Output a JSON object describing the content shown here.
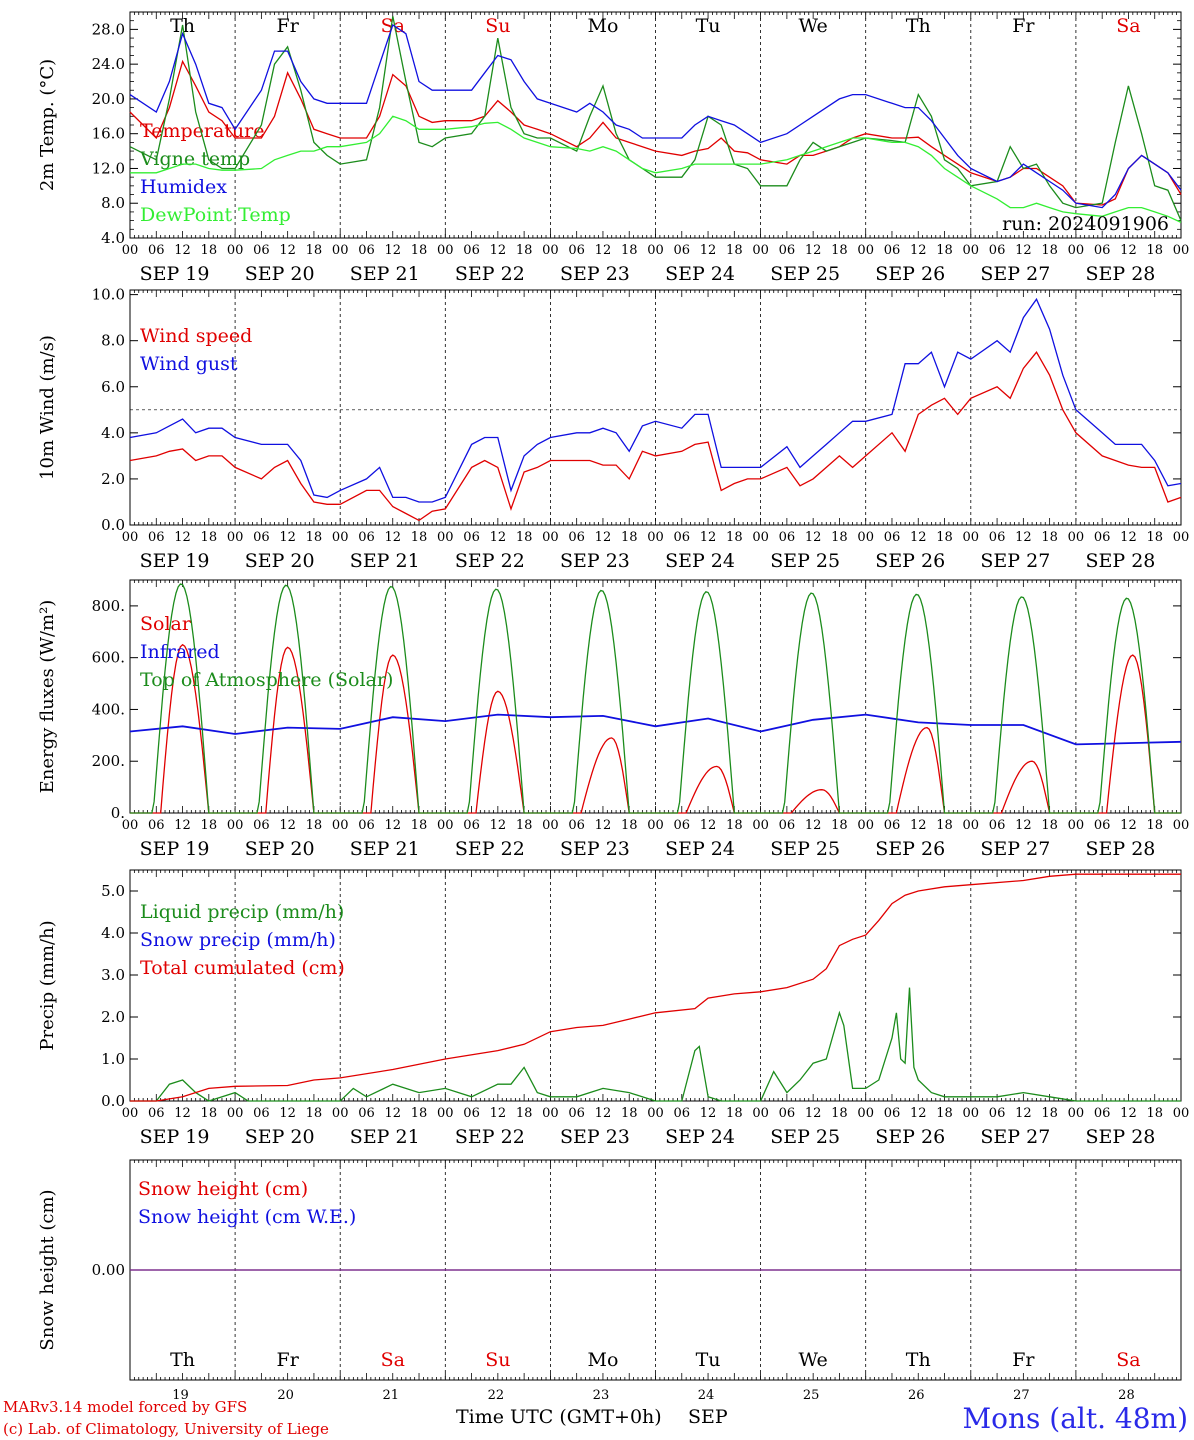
{
  "station": {
    "location": "Mons (alt. 48m)",
    "credit_line1": "MARv3.14 model forced by GFS",
    "credit_line2": "(c) Lab. of Climatology, University of Liege",
    "xlabel": "Time UTC (GMT+0h)",
    "month": "SEP",
    "run": "run: 2024091906"
  },
  "days": {
    "abbr": [
      "Th",
      "Fr",
      "Sa",
      "Su",
      "Mo",
      "Tu",
      "We",
      "Th",
      "Fr",
      "Sa"
    ],
    "dates": [
      "SEP 19",
      "SEP 20",
      "SEP 21",
      "SEP 22",
      "SEP 23",
      "SEP 24",
      "SEP 25",
      "SEP 26",
      "SEP 27",
      "SEP 28"
    ],
    "numbers": [
      "19",
      "20",
      "21",
      "22",
      "23",
      "24",
      "25",
      "26",
      "27",
      "28"
    ],
    "weekend_color": "#e00000",
    "hour_ticks": [
      "00",
      "06",
      "12",
      "18"
    ],
    "final_hour": "00"
  },
  "colors": {
    "red": "#e00000",
    "green": "#1c8c1c",
    "blue": "#1010e0",
    "light_green": "#33ee33",
    "purple": "#7a2a8a"
  },
  "chart_data": [
    {
      "type": "line",
      "id": "temperature",
      "ylabel": "2m Temp. (°C)",
      "ylim": [
        4,
        30
      ],
      "yticks": [
        4,
        8,
        12,
        16,
        20,
        24,
        28
      ],
      "yticklabels": [
        "4.0",
        "8.0",
        "12.0",
        "16.0",
        "20.0",
        "24.0",
        "28.0"
      ],
      "x_hours": [
        0,
        6,
        9,
        12,
        15,
        18,
        21,
        24,
        30,
        33,
        36,
        39,
        42,
        45,
        48,
        54,
        57,
        60,
        63,
        66,
        69,
        72,
        78,
        81,
        84,
        87,
        90,
        93,
        96,
        102,
        105,
        108,
        111,
        114,
        117,
        120,
        126,
        129,
        132,
        135,
        138,
        141,
        144,
        150,
        153,
        156,
        159,
        162,
        165,
        168,
        174,
        177,
        180,
        183,
        186,
        189,
        192,
        198,
        201,
        204,
        207,
        210,
        213,
        216,
        222,
        225,
        228,
        231,
        234,
        237,
        240
      ],
      "series": [
        {
          "name": "Temperature",
          "color": "#e00000",
          "values": [
            18.5,
            15.5,
            19,
            24.3,
            21.5,
            18.5,
            17.5,
            15.5,
            15.5,
            18,
            23,
            20,
            16.5,
            16,
            15.5,
            15.5,
            18,
            22.8,
            21.5,
            18,
            17.3,
            17.5,
            17.5,
            18,
            19.8,
            18.5,
            17,
            16.5,
            16,
            14.5,
            15.5,
            17.3,
            15.5,
            15,
            14.5,
            14,
            13.5,
            14,
            14.3,
            15.5,
            14,
            13.8,
            13,
            12.5,
            13.5,
            13.5,
            14,
            14.5,
            15.5,
            16,
            15.5,
            15.5,
            15.6,
            14.5,
            13.5,
            12.5,
            11.5,
            10.5,
            11,
            12,
            12,
            11,
            10,
            8,
            7.8,
            8.5,
            12,
            13.5,
            12.5,
            11.5,
            9
          ]
        },
        {
          "name": "Vigne temp",
          "color": "#1c8c1c",
          "values": [
            14.5,
            13,
            20,
            28.5,
            18.5,
            13,
            12,
            12,
            17,
            24,
            26,
            21,
            15,
            13.5,
            12.5,
            13,
            19,
            29.5,
            22,
            15,
            14.5,
            15.5,
            16,
            18,
            27,
            19,
            16,
            15.5,
            15.5,
            14,
            18,
            21.5,
            16,
            13,
            12,
            11,
            11,
            13,
            18,
            17,
            12.5,
            12,
            10,
            10,
            13,
            15,
            14,
            14.5,
            15,
            15.5,
            15.2,
            15,
            20.5,
            18,
            13,
            12,
            10,
            10.5,
            14.5,
            12,
            12.5,
            10,
            8,
            7.5,
            8,
            15,
            21.5,
            16,
            10,
            9.5,
            6
          ]
        },
        {
          "name": "Humidex",
          "color": "#1010e0",
          "values": [
            20.5,
            18.5,
            22,
            27.5,
            24,
            19.5,
            19,
            16.5,
            21,
            25.5,
            25.5,
            22,
            20,
            19.5,
            19.5,
            19.5,
            24,
            28.5,
            27.5,
            22,
            21,
            21,
            21,
            23,
            25,
            24.5,
            22,
            20,
            19.5,
            18.5,
            19.5,
            18.5,
            17,
            16.5,
            15.5,
            15.5,
            15.5,
            17,
            18,
            17.5,
            17,
            16,
            15,
            16,
            17,
            18,
            19,
            20,
            20.5,
            20.5,
            19.5,
            19,
            19,
            17.5,
            15.5,
            13.5,
            12,
            10.5,
            11,
            12.5,
            11.5,
            10.5,
            9.5,
            8,
            7.5,
            9,
            12,
            13.5,
            12.5,
            11.5,
            9.5
          ]
        },
        {
          "name": "DewPoint Temp",
          "color": "#33ee33",
          "values": [
            11.5,
            11.5,
            12,
            12.5,
            12.5,
            12,
            11.8,
            11.8,
            12,
            13,
            13.5,
            14,
            14,
            14.5,
            14.5,
            15,
            16,
            18,
            17.5,
            16.5,
            16.5,
            16.5,
            16.8,
            17.2,
            17.3,
            16.5,
            15.5,
            15,
            14.5,
            14.3,
            14,
            14.5,
            14,
            13,
            12,
            11.5,
            12,
            12.5,
            12.5,
            12.5,
            12.5,
            12.5,
            12.5,
            13,
            13.5,
            14,
            14.5,
            15,
            15.5,
            15.5,
            15,
            15,
            14.5,
            13.5,
            12,
            11,
            10,
            8.5,
            7.5,
            7.5,
            8,
            7.5,
            7,
            6.8,
            6.5,
            7,
            7.5,
            7.5,
            7,
            6.5,
            5.8
          ]
        }
      ]
    },
    {
      "type": "line",
      "id": "wind",
      "ylabel": "10m Wind (m/s)",
      "ylim": [
        0,
        10.2
      ],
      "yticks": [
        0,
        2,
        4,
        6,
        8,
        10
      ],
      "yticklabels": [
        "0.0",
        "2.0",
        "4.0",
        "6.0",
        "8.0",
        "10.0"
      ],
      "reference_line": 5,
      "x_hours": [
        0,
        6,
        9,
        12,
        15,
        18,
        21,
        24,
        30,
        33,
        36,
        39,
        42,
        45,
        48,
        54,
        57,
        60,
        63,
        66,
        69,
        72,
        78,
        81,
        84,
        87,
        90,
        93,
        96,
        102,
        105,
        108,
        111,
        114,
        117,
        120,
        126,
        129,
        132,
        135,
        138,
        141,
        144,
        150,
        153,
        156,
        159,
        162,
        165,
        168,
        174,
        177,
        180,
        183,
        186,
        189,
        192,
        198,
        201,
        204,
        207,
        210,
        213,
        216,
        222,
        225,
        228,
        231,
        234,
        237,
        240
      ],
      "series": [
        {
          "name": "Wind speed",
          "color": "#e00000",
          "values": [
            2.8,
            3,
            3.2,
            3.3,
            2.8,
            3,
            3,
            2.5,
            2,
            2.5,
            2.8,
            1.8,
            1,
            0.9,
            0.9,
            1.5,
            1.5,
            0.8,
            0.5,
            0.2,
            0.6,
            0.7,
            2.5,
            2.8,
            2.5,
            0.7,
            2.3,
            2.5,
            2.8,
            2.8,
            2.8,
            2.6,
            2.6,
            2,
            3.2,
            3,
            3.2,
            3.5,
            3.6,
            1.5,
            1.8,
            2,
            2,
            2.5,
            1.7,
            2,
            2.5,
            3,
            2.5,
            3,
            4,
            3.2,
            4.8,
            5.2,
            5.5,
            4.8,
            5.5,
            6,
            5.5,
            6.8,
            7.5,
            6.5,
            5,
            4,
            3,
            2.8,
            2.6,
            2.5,
            2.5,
            1,
            1.2
          ]
        },
        {
          "name": "Wind gust",
          "color": "#1010e0",
          "values": [
            3.8,
            4,
            4.3,
            4.6,
            4,
            4.2,
            4.2,
            3.8,
            3.5,
            3.5,
            3.5,
            2.8,
            1.3,
            1.2,
            1.5,
            2,
            2.5,
            1.2,
            1.2,
            1,
            1,
            1.2,
            3.5,
            3.8,
            3.8,
            1.5,
            3,
            3.5,
            3.8,
            4,
            4,
            4.2,
            4,
            3.2,
            4.3,
            4.5,
            4.2,
            4.8,
            4.8,
            2.5,
            2.5,
            2.5,
            2.5,
            3.4,
            2.5,
            3,
            3.5,
            4,
            4.5,
            4.5,
            4.8,
            7,
            7,
            7.5,
            6,
            7.5,
            7.2,
            8,
            7.5,
            9,
            9.8,
            8.5,
            6.5,
            5,
            4,
            3.5,
            3.5,
            3.5,
            2.8,
            1.7,
            1.8
          ]
        }
      ]
    },
    {
      "type": "line",
      "id": "energy",
      "ylabel": "Energy fluxes (W/m²)",
      "ylim": [
        0,
        900
      ],
      "yticks": [
        0,
        200,
        400,
        600,
        800
      ],
      "yticklabels": [
        "0.",
        "200.",
        "400.",
        "600.",
        "800."
      ],
      "series": [
        {
          "name": "Solar",
          "color": "#e00000",
          "day_peak": [
            650,
            640,
            610,
            470,
            290,
            180,
            90,
            330,
            200,
            610
          ],
          "day_peak_hour": [
            12,
            12,
            12,
            12,
            14,
            14,
            14,
            14,
            14,
            13
          ]
        },
        {
          "name": "Infrared",
          "color": "#1010e0",
          "x_hours": [
            0,
            12,
            24,
            36,
            48,
            60,
            72,
            84,
            96,
            108,
            120,
            132,
            144,
            156,
            168,
            180,
            192,
            204,
            216,
            228,
            240
          ],
          "values": [
            315,
            335,
            305,
            330,
            325,
            370,
            355,
            380,
            370,
            375,
            335,
            365,
            315,
            360,
            380,
            350,
            340,
            340,
            265,
            270,
            275
          ]
        },
        {
          "name": "Top of Atmosphere (Solar)",
          "color": "#1c8c1c",
          "day_peak": [
            885,
            880,
            875,
            865,
            860,
            855,
            850,
            845,
            835,
            830
          ],
          "sunrise_hour": 5.3,
          "sunset_hour": 18.0
        }
      ]
    },
    {
      "type": "line",
      "id": "precip",
      "ylabel": "Precip (mm/h)",
      "ylim": [
        0,
        5.5
      ],
      "yticks": [
        0,
        1,
        2,
        3,
        4,
        5
      ],
      "yticklabels": [
        "0.0",
        "1.0",
        "2.0",
        "3.0",
        "4.0",
        "5.0"
      ],
      "series": [
        {
          "name": "Liquid precip (mm/h)",
          "color": "#1c8c1c",
          "x_hours": [
            0,
            6,
            9,
            12,
            15,
            18,
            24,
            27,
            30,
            36,
            42,
            48,
            51,
            54,
            60,
            66,
            72,
            78,
            84,
            87,
            90,
            93,
            96,
            102,
            108,
            114,
            120,
            126,
            129,
            130,
            132,
            135,
            138,
            144,
            147,
            150,
            153,
            156,
            159,
            162,
            163,
            165,
            168,
            171,
            174,
            175,
            176,
            177,
            178,
            179,
            180,
            183,
            186,
            192,
            198,
            204,
            210,
            216,
            222,
            228,
            234,
            240
          ],
          "values": [
            0,
            0,
            0.4,
            0.5,
            0.2,
            0,
            0.2,
            0,
            0,
            0,
            0,
            0,
            0.3,
            0.1,
            0.4,
            0.2,
            0.3,
            0.1,
            0.4,
            0.4,
            0.8,
            0.2,
            0.1,
            0.1,
            0.3,
            0.2,
            0,
            0,
            1.2,
            1.3,
            0.1,
            0,
            0,
            0,
            0.7,
            0.2,
            0.5,
            0.9,
            1,
            2.1,
            1.8,
            0.3,
            0.3,
            0.5,
            1.5,
            2.1,
            1,
            0.9,
            2.7,
            0.8,
            0.5,
            0.2,
            0.1,
            0.1,
            0.1,
            0.2,
            0.1,
            0,
            0,
            0,
            0,
            0
          ]
        },
        {
          "name": "Snow precip (mm/h)",
          "color": "#1010e0",
          "values": []
        },
        {
          "name": "Total cumulated (cm)",
          "color": "#e00000",
          "x_hours": [
            0,
            6,
            12,
            18,
            24,
            36,
            42,
            48,
            60,
            72,
            84,
            90,
            96,
            102,
            108,
            114,
            120,
            129,
            132,
            138,
            144,
            150,
            156,
            159,
            162,
            165,
            168,
            171,
            174,
            177,
            180,
            186,
            192,
            204,
            210,
            216,
            228,
            240
          ],
          "values": [
            0,
            0,
            0.1,
            0.3,
            0.35,
            0.37,
            0.5,
            0.55,
            0.75,
            1.0,
            1.2,
            1.35,
            1.65,
            1.75,
            1.8,
            1.95,
            2.1,
            2.2,
            2.45,
            2.55,
            2.6,
            2.7,
            2.9,
            3.15,
            3.7,
            3.85,
            3.95,
            4.3,
            4.7,
            4.9,
            5.0,
            5.1,
            5.15,
            5.25,
            5.35,
            5.4,
            5.4,
            5.4
          ]
        }
      ]
    },
    {
      "type": "line",
      "id": "snow",
      "ylabel": "Snow height (cm)",
      "ylim": [
        -0.5,
        0.5
      ],
      "yticks": [
        0
      ],
      "yticklabels": [
        "0.00"
      ],
      "series": [
        {
          "name": "Snow height (cm)",
          "color": "#e00000",
          "x_hours": [
            0,
            240
          ],
          "values": [
            0,
            0
          ]
        },
        {
          "name": "Snow height (cm W.E.)",
          "color": "#1010e0",
          "x_hours": [
            0,
            240
          ],
          "values": [
            0,
            0
          ]
        }
      ]
    }
  ]
}
